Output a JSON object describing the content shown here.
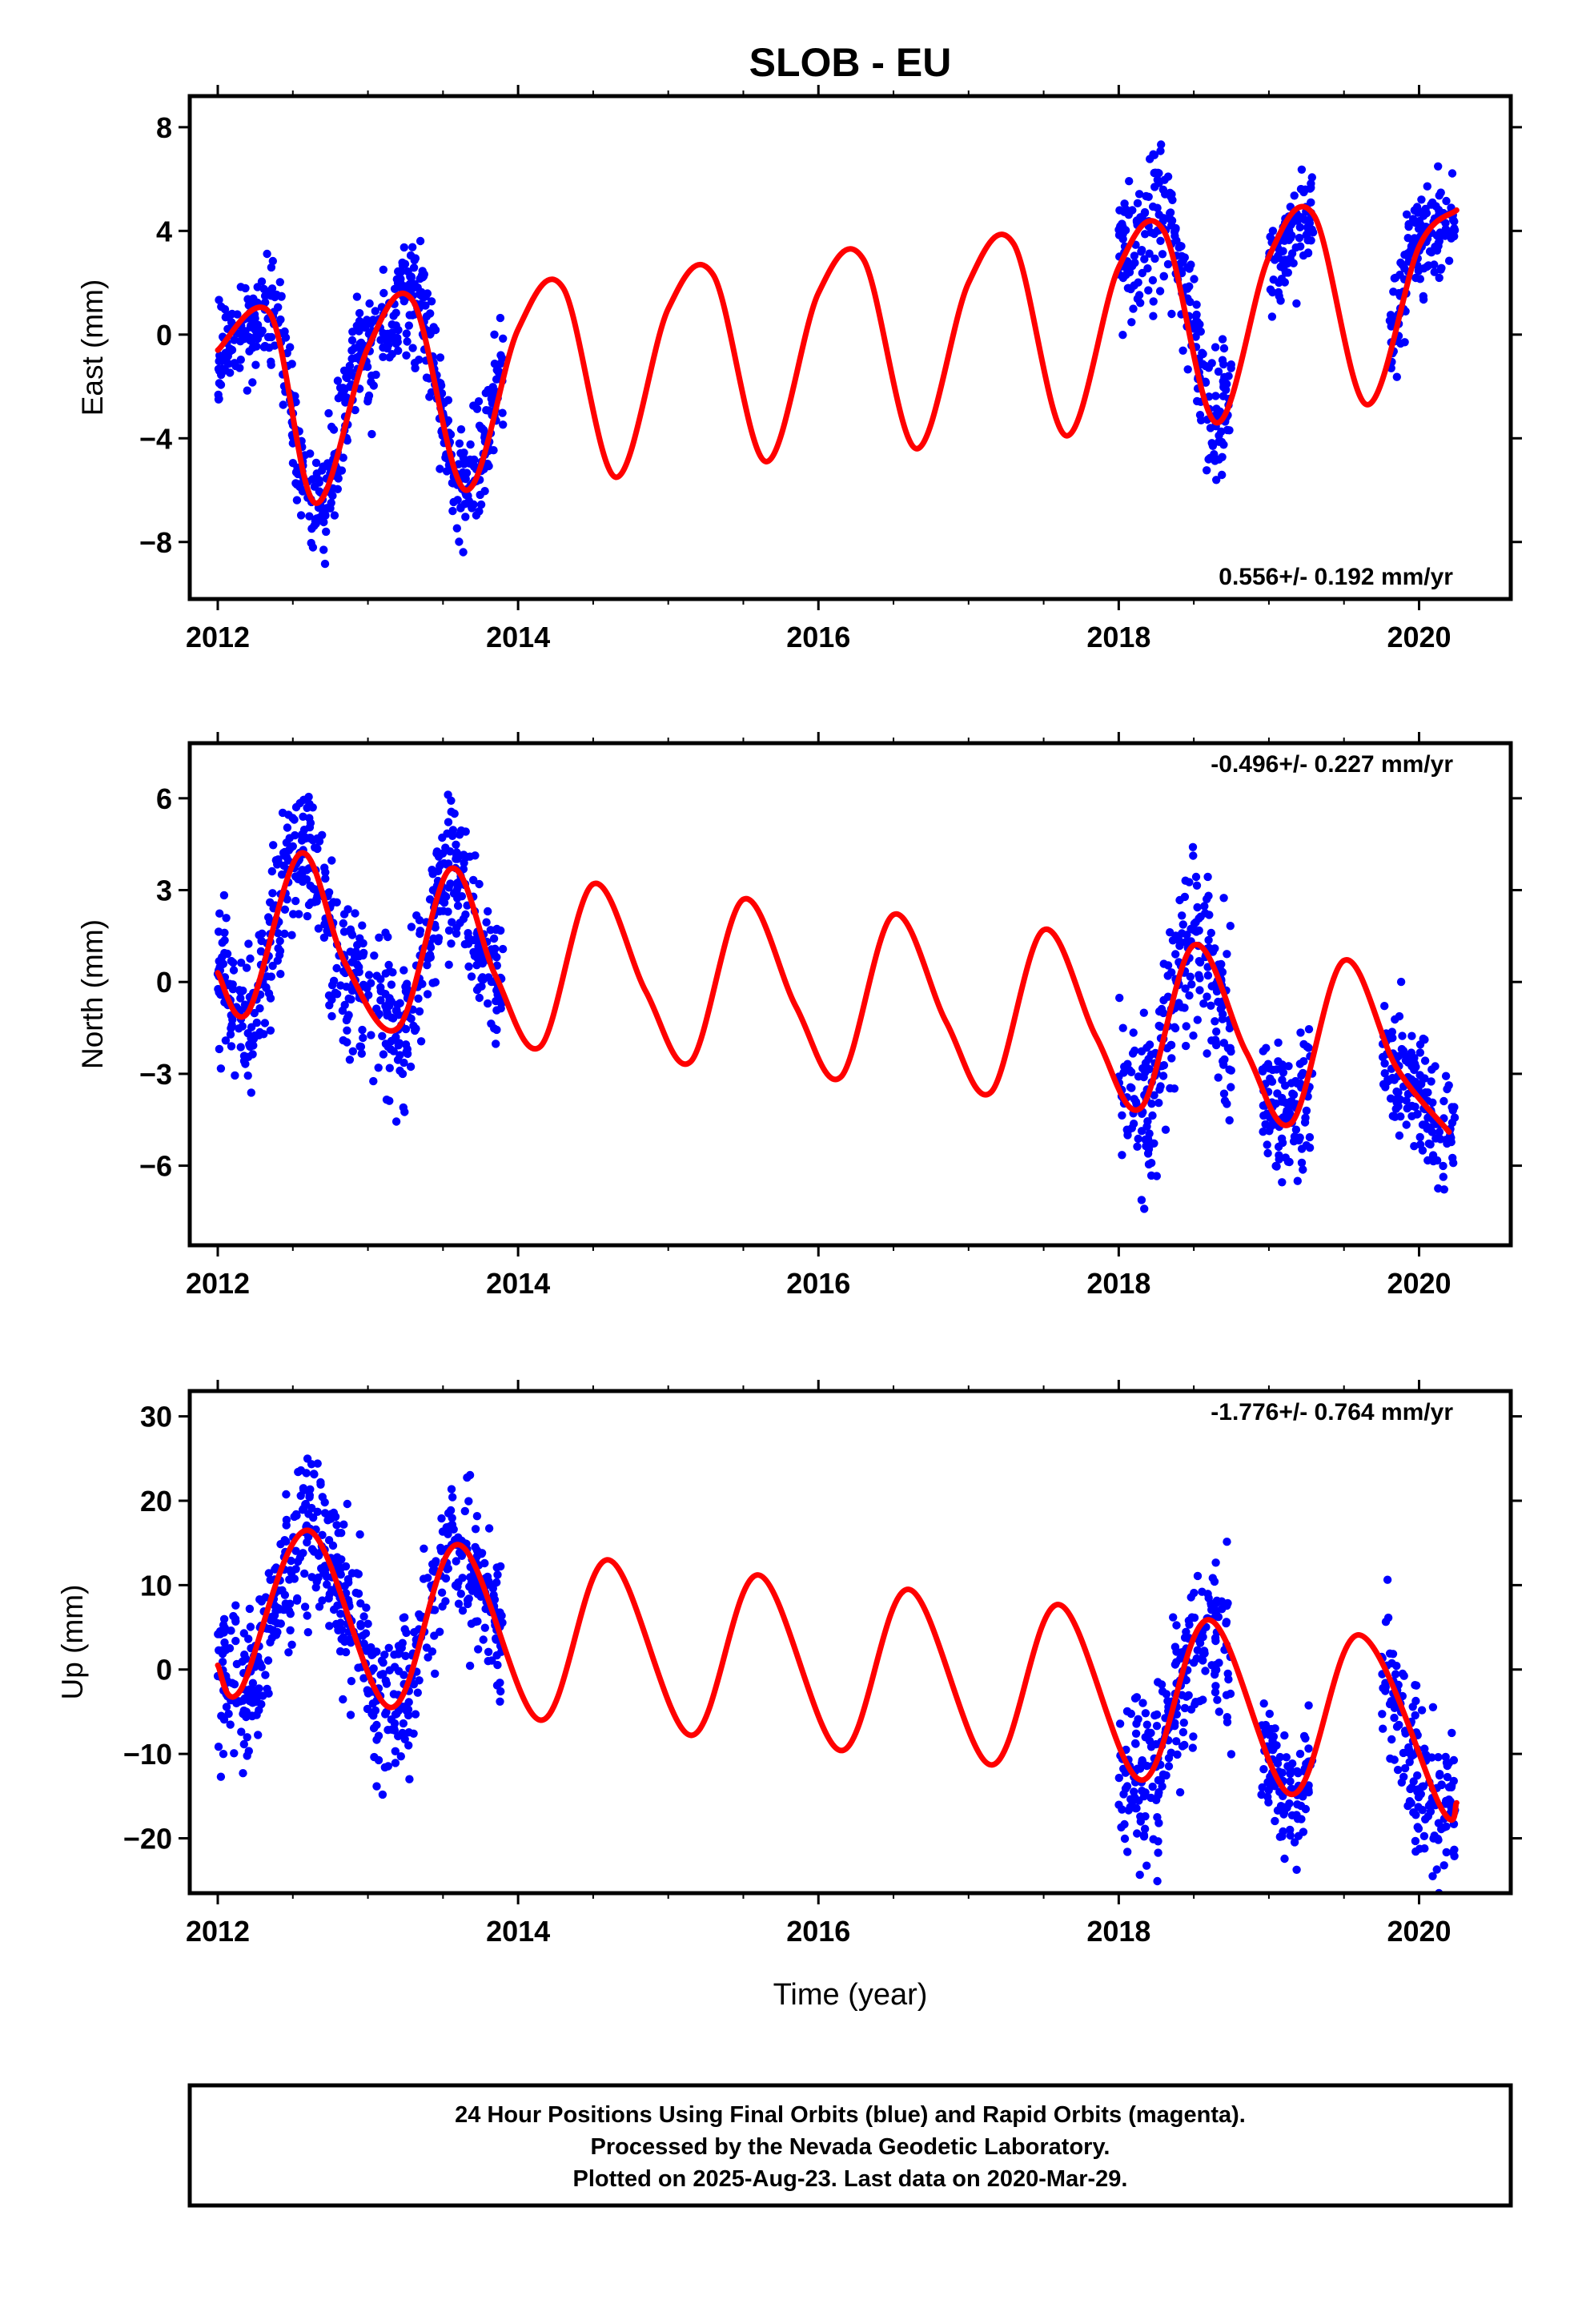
{
  "title": "SLOB - EU",
  "xlabel": "Time (year)",
  "footer_lines": [
    "24 Hour Positions Using Final Orbits (blue) and Rapid Orbits (magenta).",
    "Processed by the Nevada Geodetic Laboratory.",
    "Plotted on 2025-Aug-23. Last data on 2020-Mar-29."
  ],
  "colors": {
    "data": "#0000ff",
    "model": "#ff0000",
    "axis": "#000000"
  },
  "chart_data": [
    {
      "type": "scatter",
      "ylabel": "East (mm)",
      "rate_label": "0.556+/- 0.192 mm/yr",
      "rate_position": "bottom-right",
      "xlim": [
        2011.9,
        2020.42
      ],
      "ylim": [
        -10.2,
        9.2
      ],
      "xticks": [
        2012,
        2014,
        2016,
        2018,
        2020
      ],
      "yticks": [
        -8,
        -4,
        0,
        4,
        8
      ],
      "tick_labels": [
        "−8",
        "−4",
        "0",
        "4",
        "8"
      ],
      "grid": false,
      "model": {
        "name": "model",
        "color": "#ff0000",
        "x": [
          2012.0,
          2012.35,
          2012.65,
          2013.0,
          2013.3,
          2013.65,
          2014.0,
          2014.3,
          2014.65,
          2015.0,
          2015.3,
          2015.65,
          2016.0,
          2016.3,
          2016.65,
          2017.0,
          2017.3,
          2017.65,
          2018.0,
          2018.3,
          2018.65,
          2019.0,
          2019.3,
          2019.65,
          2020.0,
          2020.25
        ],
        "y": [
          -0.6,
          0.8,
          -6.5,
          -0.5,
          1.3,
          -6.0,
          0.2,
          1.8,
          -5.5,
          1.0,
          2.3,
          -4.9,
          1.6,
          2.9,
          -4.4,
          2.0,
          3.5,
          -3.9,
          2.6,
          4.0,
          -3.4,
          3.0,
          4.6,
          -2.7,
          3.4,
          4.8
        ]
      },
      "series": [
        {
          "name": "",
          "color": "#0000ff",
          "segments": [
            {
              "x0": 2012.0,
              "x1": 2013.9,
              "noise": 1.1,
              "offset": 0.0
            },
            {
              "x0": 2018.0,
              "x1": 2018.75,
              "noise": 1.4,
              "offset": 0.5
            },
            {
              "x0": 2019.0,
              "x1": 2019.3,
              "noise": 0.9,
              "offset": 0.0
            },
            {
              "x0": 2019.8,
              "x1": 2020.24,
              "noise": 1.0,
              "offset": 0.0
            }
          ]
        }
      ]
    },
    {
      "type": "scatter",
      "ylabel": "North (mm)",
      "rate_label": "-0.496+/- 0.227 mm/yr",
      "rate_position": "top-right",
      "xlim": [
        2011.9,
        2020.42
      ],
      "ylim": [
        -8.6,
        7.8
      ],
      "xticks": [
        2012,
        2014,
        2016,
        2018,
        2020
      ],
      "yticks": [
        -6,
        -3,
        0,
        3,
        6
      ],
      "tick_labels": [
        "−6",
        "−3",
        "0",
        "3",
        "6"
      ],
      "grid": false,
      "model": {
        "name": "model",
        "color": "#ff0000",
        "x": [
          2012.0,
          2012.2,
          2012.55,
          2012.85,
          2013.2,
          2013.55,
          2013.85,
          2014.15,
          2014.5,
          2014.85,
          2015.15,
          2015.5,
          2015.85,
          2016.15,
          2016.5,
          2016.85,
          2017.15,
          2017.5,
          2017.85,
          2018.15,
          2018.5,
          2018.85,
          2019.15,
          2019.5,
          2019.85,
          2020.2
        ],
        "y": [
          0.3,
          -1.0,
          4.2,
          0.6,
          -1.5,
          3.7,
          0.2,
          -2.1,
          3.2,
          -0.3,
          -2.6,
          2.7,
          -0.8,
          -3.1,
          2.2,
          -1.3,
          -3.6,
          1.7,
          -1.8,
          -4.1,
          1.2,
          -2.3,
          -4.6,
          0.7,
          -2.8,
          -4.9
        ]
      },
      "series": [
        {
          "name": "",
          "color": "#0000ff",
          "segments": [
            {
              "x0": 2012.0,
              "x1": 2013.9,
              "noise": 1.2,
              "offset": 0.0
            },
            {
              "x0": 2018.0,
              "x1": 2018.75,
              "noise": 1.4,
              "offset": 0.0
            },
            {
              "x0": 2018.95,
              "x1": 2019.3,
              "noise": 1.0,
              "offset": 0.0
            },
            {
              "x0": 2019.75,
              "x1": 2020.24,
              "noise": 1.0,
              "offset": 0.0
            }
          ]
        }
      ]
    },
    {
      "type": "scatter",
      "ylabel": "Up (mm)",
      "rate_label": "-1.776+/- 0.764 mm/yr",
      "rate_position": "top-right",
      "xlim": [
        2011.9,
        2020.42
      ],
      "ylim": [
        -26.5,
        33.0
      ],
      "xticks": [
        2012,
        2014,
        2016,
        2018,
        2020
      ],
      "yticks": [
        -20,
        -10,
        0,
        10,
        20,
        30
      ],
      "tick_labels": [
        "−20",
        "−10",
        "0",
        "10",
        "20",
        "30"
      ],
      "grid": false,
      "model": {
        "name": "model",
        "color": "#ff0000",
        "x": [
          2012.0,
          2012.15,
          2012.6,
          2013.15,
          2013.6,
          2014.15,
          2014.6,
          2015.15,
          2015.6,
          2016.15,
          2016.6,
          2017.15,
          2017.6,
          2018.15,
          2018.6,
          2019.15,
          2019.6,
          2020.15,
          2020.25
        ],
        "y": [
          0.5,
          -2.5,
          16.5,
          -4.5,
          14.8,
          -6.0,
          13.0,
          -7.8,
          11.2,
          -9.6,
          9.5,
          -11.3,
          7.7,
          -13.1,
          5.9,
          -14.8,
          4.1,
          -16.5,
          -15.8
        ]
      },
      "series": [
        {
          "name": "",
          "color": "#0000ff",
          "segments": [
            {
              "x0": 2012.0,
              "x1": 2013.9,
              "noise": 4.5,
              "offset": 0.0
            },
            {
              "x0": 2018.0,
              "x1": 2018.75,
              "noise": 5.0,
              "offset": -1.0
            },
            {
              "x0": 2018.95,
              "x1": 2019.3,
              "noise": 3.5,
              "offset": 0.0
            },
            {
              "x0": 2019.75,
              "x1": 2020.24,
              "noise": 4.5,
              "offset": 0.0
            }
          ]
        }
      ]
    }
  ]
}
